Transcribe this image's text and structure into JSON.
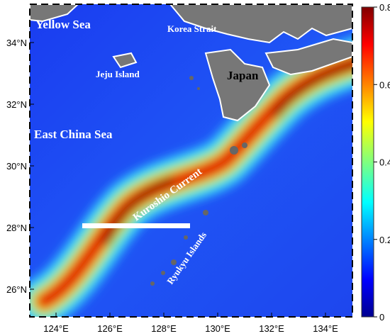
{
  "map": {
    "lon_ticks": [
      {
        "value": 124,
        "label": "124°E"
      },
      {
        "value": 126,
        "label": "126°E"
      },
      {
        "value": 128,
        "label": "128°E"
      },
      {
        "value": 130,
        "label": "130°E"
      },
      {
        "value": 132,
        "label": "132°E"
      },
      {
        "value": 134,
        "label": "134°E"
      }
    ],
    "lat_ticks": [
      {
        "value": 26,
        "label": "26°N"
      },
      {
        "value": 28,
        "label": "28°N"
      },
      {
        "value": 30,
        "label": "30°N"
      },
      {
        "value": 32,
        "label": "32°N"
      },
      {
        "value": 34,
        "label": "34°N"
      }
    ],
    "labels": {
      "yellow_sea": "Yellow Sea",
      "korea_strait": "Korea Strait",
      "jeju": "Jeju Island",
      "japan": "Japan",
      "east_china_sea": "East China Sea",
      "kuroshio": "Kuroshio Current",
      "ryukyu": "Ryukyu Islands"
    }
  },
  "colorbar": {
    "lim": [
      0,
      0.8
    ],
    "ticks": [
      0,
      0.2,
      0.4,
      0.6,
      0.8
    ]
  }
}
